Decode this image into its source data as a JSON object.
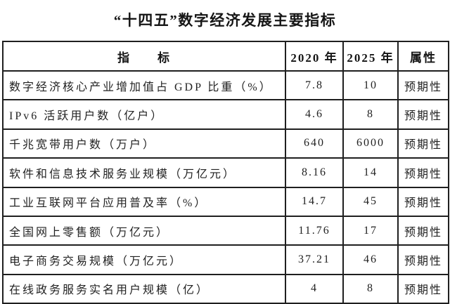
{
  "title": "“十四五”数字经济发展主要指标",
  "table": {
    "headers": {
      "indicator": "指　　标",
      "y2020": "2020 年",
      "y2025": "2025 年",
      "attribute": "属性"
    },
    "rows": [
      {
        "indicator": "数字经济核心产业增加值占 GDP 比重（%）",
        "y2020": "7.8",
        "y2025": "10",
        "attribute": "预期性"
      },
      {
        "indicator": "IPv6 活跃用户数（亿户）",
        "y2020": "4.6",
        "y2025": "8",
        "attribute": "预期性"
      },
      {
        "indicator": "千兆宽带用户数（万户）",
        "y2020": "640",
        "y2025": "6000",
        "attribute": "预期性"
      },
      {
        "indicator": "软件和信息技术服务业规模（万亿元）",
        "y2020": "8.16",
        "y2025": "14",
        "attribute": "预期性"
      },
      {
        "indicator": "工业互联网平台应用普及率（%）",
        "y2020": "14.7",
        "y2025": "45",
        "attribute": "预期性"
      },
      {
        "indicator": "全国网上零售额（万亿元）",
        "y2020": "11.76",
        "y2025": "17",
        "attribute": "预期性"
      },
      {
        "indicator": "电子商务交易规模（万亿元）",
        "y2020": "37.21",
        "y2025": "46",
        "attribute": "预期性"
      },
      {
        "indicator": "在线政务服务实名用户规模（亿）",
        "y2020": "4",
        "y2025": "8",
        "attribute": "预期性"
      }
    ]
  }
}
